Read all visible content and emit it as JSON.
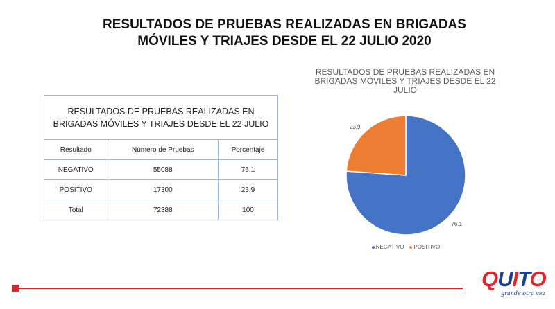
{
  "slide": {
    "title_line1": "RESULTADOS DE PRUEBAS REALIZADAS  EN BRIGADAS",
    "title_line2": "MÓVILES Y TRIAJES DESDE EL 22 JULIO 2020"
  },
  "table": {
    "caption_line1": "RESULTADOS  DE PRUEBAS  REALIZADAS  EN",
    "caption_line2": "BRIGADAS  MÓVILES Y TRIAJES DESDE EL 22 JULIO",
    "headers": [
      "Resultado",
      "Número  de Pruebas",
      "Porcentaje"
    ],
    "rows": [
      [
        "NEGATIVO",
        "55088",
        "76.1"
      ],
      [
        "POSITIVO",
        "17300",
        "23.9"
      ],
      [
        "Total",
        "72388",
        "100"
      ]
    ]
  },
  "chart_data": {
    "type": "pie",
    "title": "RESULTADOS DE PRUEBAS REALIZADAS EN BRIGADAS MÓVILES Y TRIAJES DESDE EL 22 JULIO",
    "categories": [
      "NEGATIVO",
      "POSITIVO"
    ],
    "values": [
      76.1,
      23.9
    ],
    "data_labels": [
      "76.1",
      "23.9"
    ],
    "colors": [
      "#4472c4",
      "#ed7d31"
    ],
    "legend": "bottom"
  },
  "logo": {
    "letters": [
      "Q",
      "U",
      "I",
      "T",
      "O"
    ],
    "tagline": "grande otra vez"
  }
}
